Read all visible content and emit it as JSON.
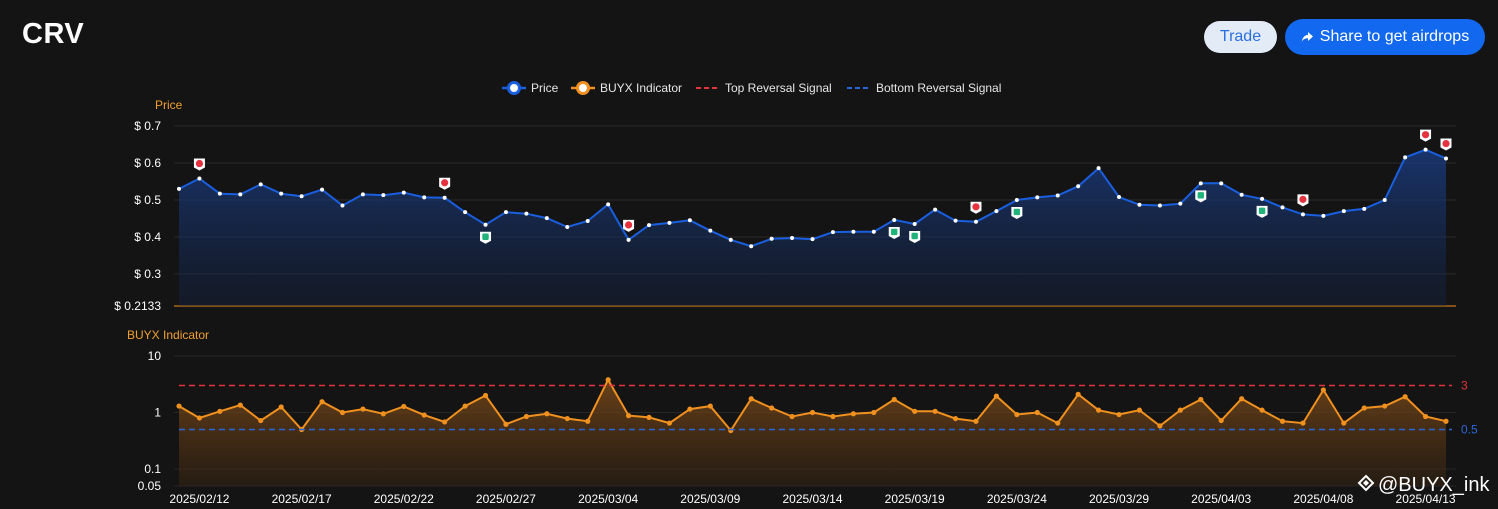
{
  "header": {
    "title": "CRV",
    "trade_label": "Trade",
    "share_label": "Share to get airdrops",
    "share_icon": "share-arrow-icon"
  },
  "legend": [
    {
      "name": "Price",
      "color": "#1a5fe0",
      "kind": "line-dot"
    },
    {
      "name": "BUYX Indicator",
      "color": "#f0901e",
      "kind": "line-dot"
    },
    {
      "name": "Top Reversal Signal",
      "color": "#e5323e",
      "kind": "dashed"
    },
    {
      "name": "Bottom Reversal Signal",
      "color": "#2a66d9",
      "kind": "dashed"
    }
  ],
  "watermark": "@BUYX_ink",
  "chart_data": [
    {
      "type": "line",
      "title": "",
      "ylabel": "Price",
      "y_ticks": [
        0.3,
        0.4,
        0.5,
        0.6,
        0.7
      ],
      "y_tick_labels": [
        "$ 0.3",
        "$ 0.4",
        "$ 0.5",
        "$ 0.6",
        "$ 0.7"
      ],
      "y_min_label": "$ 0.2133",
      "ylim": [
        0.2133,
        0.7
      ],
      "x_start": "2025/02/11",
      "x_tick_labels": [
        "2025/02/12",
        "2025/02/17",
        "2025/02/22",
        "2025/02/27",
        "2025/03/04",
        "2025/03/09",
        "2025/03/14",
        "2025/03/19",
        "2025/03/24",
        "2025/03/29",
        "2025/04/03",
        "2025/04/08",
        "2025/04/13"
      ],
      "series": [
        {
          "name": "Price",
          "color": "#1a5fe0",
          "values": [
            0.53,
            0.558,
            0.517,
            0.515,
            0.542,
            0.517,
            0.51,
            0.528,
            0.485,
            0.515,
            0.513,
            0.52,
            0.507,
            0.506,
            0.467,
            0.433,
            0.467,
            0.463,
            0.451,
            0.427,
            0.443,
            0.488,
            0.392,
            0.432,
            0.438,
            0.445,
            0.417,
            0.392,
            0.375,
            0.395,
            0.397,
            0.394,
            0.413,
            0.414,
            0.414,
            0.446,
            0.435,
            0.474,
            0.444,
            0.441,
            0.47,
            0.5,
            0.507,
            0.512,
            0.537,
            0.586,
            0.508,
            0.487,
            0.485,
            0.49,
            0.545,
            0.545,
            0.514,
            0.503,
            0.48,
            0.461,
            0.457,
            0.47,
            0.476,
            0.5,
            0.615,
            0.636,
            0.612
          ]
        }
      ],
      "sell_signals": [
        1,
        13,
        22,
        39,
        55,
        61,
        62
      ],
      "buy_signals": [
        15,
        35,
        36,
        41,
        50,
        53
      ]
    },
    {
      "type": "area",
      "title": "",
      "ylabel": "BUYX Indicator",
      "y_scale": "log",
      "y_ticks": [
        0.05,
        0.1,
        1,
        10
      ],
      "y_tick_labels": [
        "0.05",
        "0.1",
        "1",
        "10"
      ],
      "ylim": [
        0.05,
        10
      ],
      "top_reversal_line": 3,
      "bottom_reversal_line": 0.5,
      "series": [
        {
          "name": "BUYX Indicator",
          "color": "#f0901e",
          "values": [
            1.3,
            0.8,
            1.05,
            1.35,
            0.72,
            1.25,
            0.5,
            1.55,
            1.0,
            1.15,
            0.95,
            1.28,
            0.9,
            0.68,
            1.3,
            2.0,
            0.62,
            0.85,
            0.95,
            0.78,
            0.7,
            3.8,
            0.88,
            0.82,
            0.65,
            1.15,
            1.3,
            0.48,
            1.75,
            1.2,
            0.85,
            1.0,
            0.85,
            0.95,
            1.0,
            1.7,
            1.05,
            1.05,
            0.78,
            0.7,
            1.95,
            0.92,
            1.0,
            0.65,
            2.1,
            1.1,
            0.92,
            1.1,
            0.58,
            1.1,
            1.7,
            0.72,
            1.75,
            1.1,
            0.7,
            0.65,
            2.5,
            0.65,
            1.2,
            1.3,
            1.9,
            0.85,
            0.7
          ]
        }
      ]
    }
  ]
}
